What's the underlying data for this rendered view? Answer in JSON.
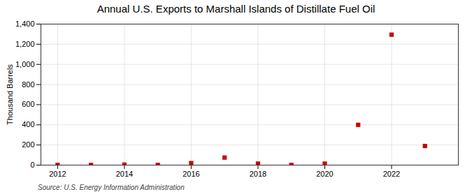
{
  "chart_data": {
    "type": "scatter",
    "title": "Annual U.S. Exports to Marshall Islands of Distillate Fuel Oil",
    "ylabel": "Thousand Barrels",
    "source": "Source: U.S. Energy Information Administration",
    "x": [
      2012,
      2013,
      2014,
      2015,
      2016,
      2017,
      2018,
      2019,
      2020,
      2021,
      2022,
      2023
    ],
    "values": [
      2,
      2,
      5,
      2,
      20,
      75,
      15,
      2,
      15,
      400,
      1295,
      190
    ],
    "color": "#cc0000",
    "marker": "square",
    "xlim": [
      2011.5,
      2024.0
    ],
    "ylim": [
      0,
      1400
    ],
    "xticks": [
      2012,
      2014,
      2016,
      2018,
      2020,
      2022
    ],
    "yticks": [
      0,
      200,
      400,
      600,
      800,
      {
        "value": 1000,
        "label": "1,000"
      },
      {
        "value": 1200,
        "label": "1,200"
      },
      {
        "value": 1400,
        "label": "1,400"
      }
    ],
    "grid": true
  }
}
